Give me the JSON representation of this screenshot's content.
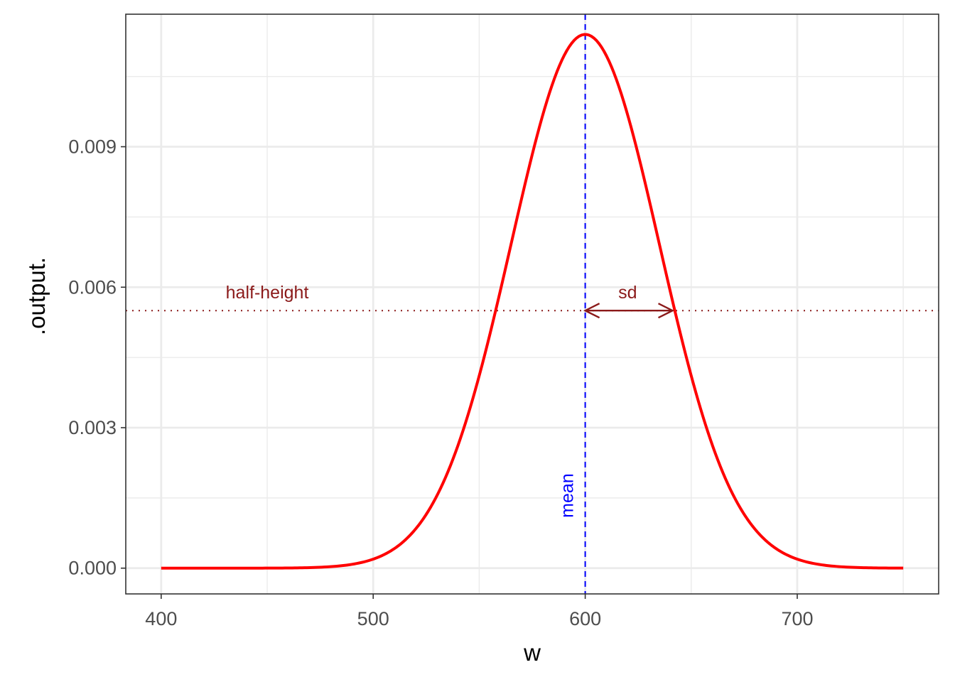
{
  "chart_data": {
    "type": "line",
    "xlabel": "w",
    "ylabel": ".output.",
    "xlim": [
      383.3,
      1766.7
    ],
    "ylim": [
      -0.00055,
      0.01183
    ],
    "x_ticks": [
      {
        "value": 400,
        "label": "400"
      },
      {
        "value": 500,
        "label": "500"
      },
      {
        "value": 600,
        "label": "600"
      },
      {
        "value": 700,
        "label": "700"
      }
    ],
    "y_ticks": [
      {
        "value": 0.0,
        "label": "0.000"
      },
      {
        "value": 0.003,
        "label": "0.003"
      },
      {
        "value": 0.006,
        "label": "0.006"
      },
      {
        "value": 0.009,
        "label": "0.009"
      }
    ],
    "x_minor": [
      450,
      550,
      650,
      750
    ],
    "y_minor": [
      0.0015,
      0.0045,
      0.0075,
      0.0105
    ],
    "grid": true,
    "series": [
      {
        "type": "normal-density",
        "mean": 600,
        "sd": 35,
        "x_from": 400,
        "x_to": 750,
        "color": "#ff0000"
      }
    ],
    "annotations": {
      "mean_line": {
        "x": 600,
        "color": "#0000ff",
        "label": "mean",
        "label_y": 0.00155
      },
      "half_height_line": {
        "y": 0.0055,
        "color": "#8b1a1a",
        "label": "half-height",
        "label_x": 450,
        "label_y": 0.0059
      },
      "sd_arrow": {
        "x_from": 600,
        "x_to": 641.2,
        "y": 0.0055,
        "color": "#8b1a1a",
        "label": "sd",
        "label_x": 620,
        "label_y": 0.0059
      }
    },
    "colors": {
      "panel_border": "#333333",
      "grid": "#ebebeb"
    }
  }
}
